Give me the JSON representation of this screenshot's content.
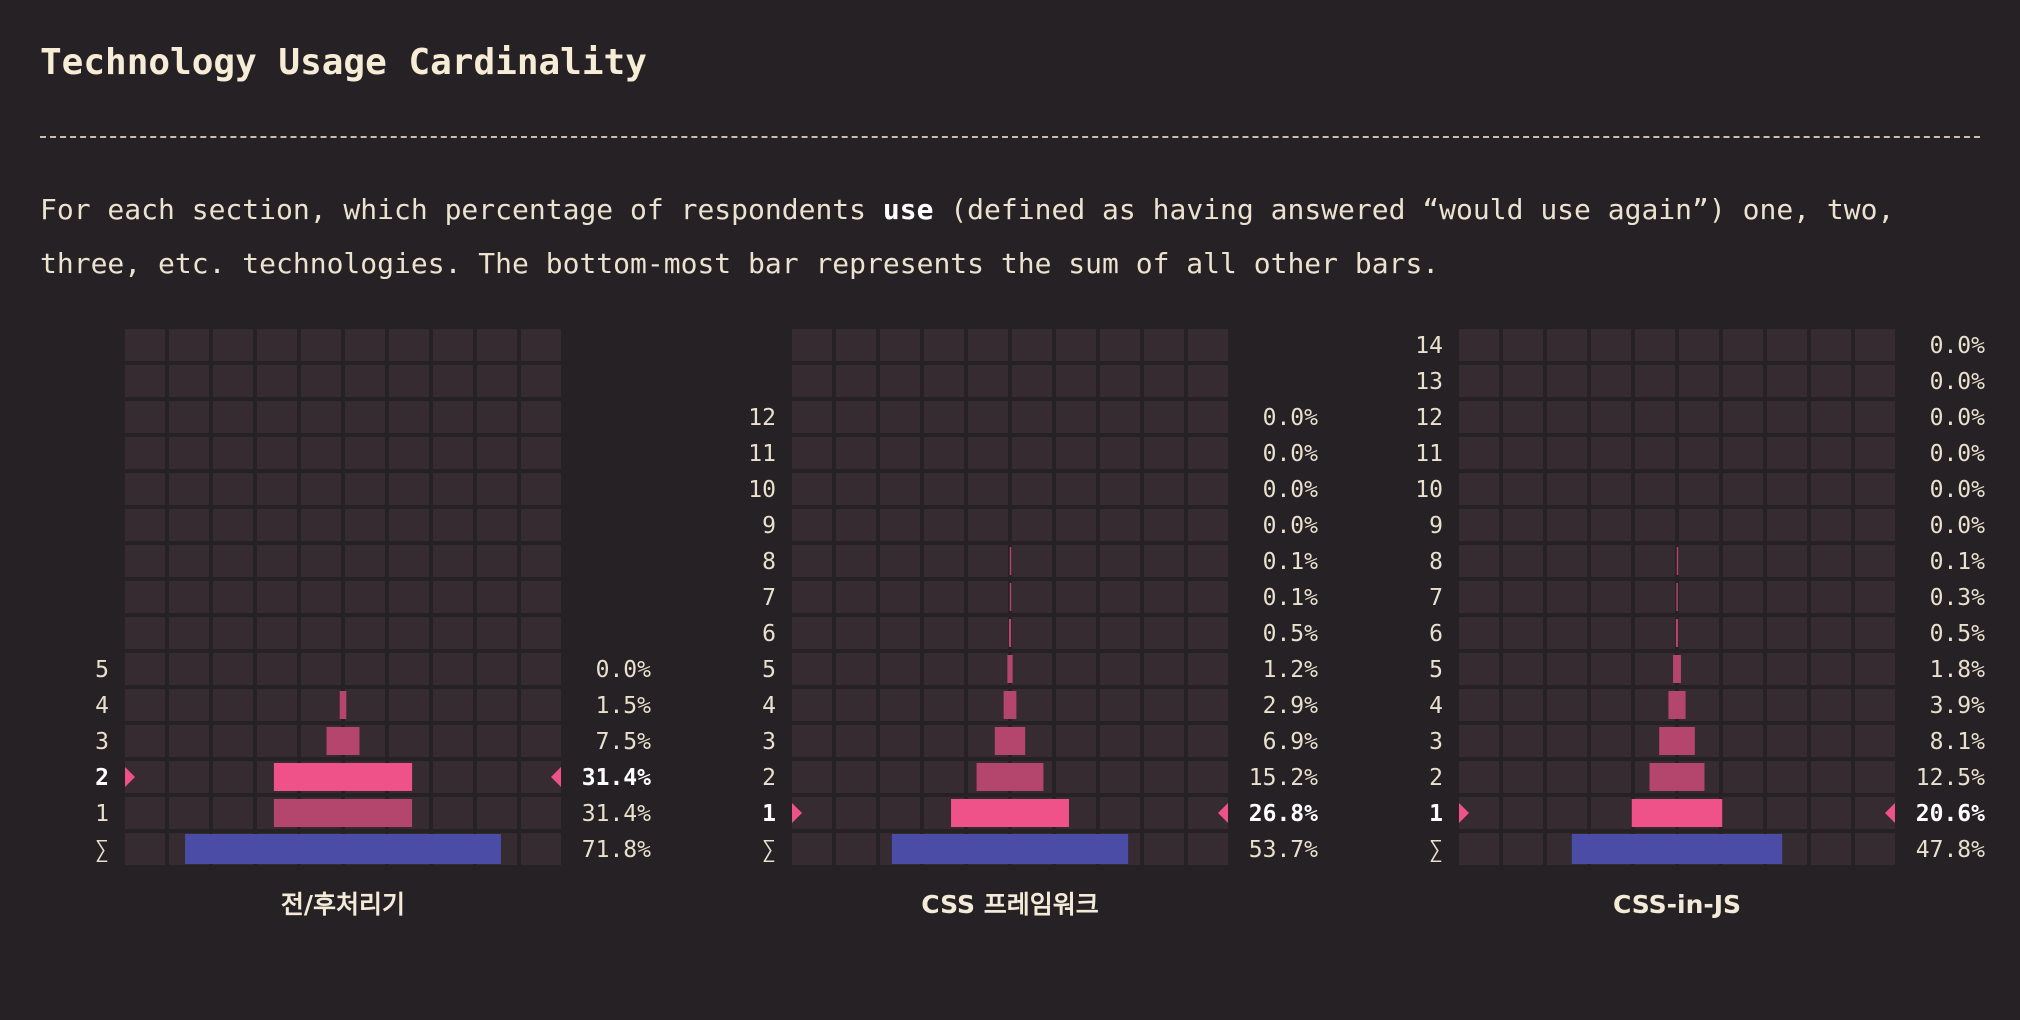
{
  "header": {
    "title": "Technology Usage Cardinality",
    "desc_pre": "For each section, which percentage of respondents ",
    "desc_bold": "use",
    "desc_post": " (defined as having answered “would use again”) one, two, three, etc. technologies. The bottom-most bar represents the sum of all other bars."
  },
  "colors": {
    "background": "#252124",
    "cell": "#352b31",
    "bar": "#b4456c",
    "highlight_bar": "#ef5289",
    "sum_bar": "#4a4ca6",
    "marker": "#ef5289"
  },
  "chart_data": [
    {
      "type": "bar",
      "title": "전/후처리기",
      "sum_label": "∑",
      "sum_value": 71.8,
      "sum_text": "71.8%",
      "highlight": "2",
      "categories": [
        "5",
        "4",
        "3",
        "2",
        "1"
      ],
      "values": [
        0.0,
        1.5,
        7.5,
        31.4,
        31.4
      ],
      "value_labels": [
        "0.0%",
        "1.5%",
        "7.5%",
        "31.4%",
        "31.4%"
      ]
    },
    {
      "type": "bar",
      "title": "CSS 프레임워크",
      "sum_label": "∑",
      "sum_value": 53.7,
      "sum_text": "53.7%",
      "highlight": "1",
      "categories": [
        "12",
        "11",
        "10",
        "9",
        "8",
        "7",
        "6",
        "5",
        "4",
        "3",
        "2",
        "1"
      ],
      "values": [
        0.0,
        0.0,
        0.0,
        0.0,
        0.1,
        0.1,
        0.5,
        1.2,
        2.9,
        6.9,
        15.2,
        26.8
      ],
      "value_labels": [
        "0.0%",
        "0.0%",
        "0.0%",
        "0.0%",
        "0.1%",
        "0.1%",
        "0.5%",
        "1.2%",
        "2.9%",
        "6.9%",
        "15.2%",
        "26.8%"
      ]
    },
    {
      "type": "bar",
      "title": "CSS-in-JS",
      "sum_label": "∑",
      "sum_value": 47.8,
      "sum_text": "47.8%",
      "highlight": "1",
      "categories": [
        "14",
        "13",
        "12",
        "11",
        "10",
        "9",
        "8",
        "7",
        "6",
        "5",
        "4",
        "3",
        "2",
        "1"
      ],
      "values": [
        0.0,
        0.0,
        0.0,
        0.0,
        0.0,
        0.0,
        0.1,
        0.3,
        0.5,
        1.8,
        3.9,
        8.1,
        12.5,
        20.6
      ],
      "value_labels": [
        "0.0%",
        "0.0%",
        "0.0%",
        "0.0%",
        "0.0%",
        "0.0%",
        "0.1%",
        "0.3%",
        "0.5%",
        "1.8%",
        "3.9%",
        "8.1%",
        "12.5%",
        "20.6%"
      ]
    }
  ]
}
